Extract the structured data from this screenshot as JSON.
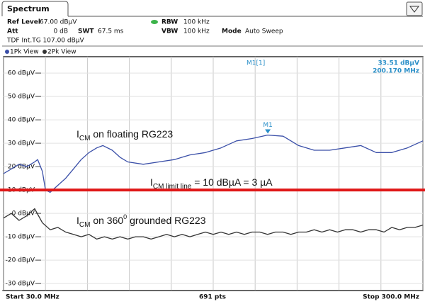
{
  "header": {
    "tab": "Spectrum",
    "ref_level_label": "Ref Level",
    "ref_level": "67.00 dBµV",
    "att_label": "Att",
    "att": "0 dB",
    "swt_label": "SWT",
    "swt": "67.5 ms",
    "rbw_label": "RBW",
    "rbw": "100 kHz",
    "vbw_label": "VBW",
    "vbw": "100 kHz",
    "mode_label": "Mode",
    "mode": "Auto Sweep",
    "tdf": "TDF Int.TG 107.00 dBµV"
  },
  "footer": {
    "start": "Start 30.0 MHz",
    "points": "691 pts",
    "stop": "Stop 300.0 MHz"
  },
  "chart_data": {
    "type": "line",
    "xlim": [
      30,
      300
    ],
    "xticks": [
      30,
      57,
      84,
      111,
      138,
      165,
      192,
      219,
      246,
      273,
      300
    ],
    "ylim": [
      -33,
      67
    ],
    "yticks": [
      {
        "value": 60,
        "label": "60 dBµV"
      },
      {
        "value": 50,
        "label": "50 dBµV"
      },
      {
        "value": 40,
        "label": "40 dBµV"
      },
      {
        "value": 30,
        "label": "30 dBµV"
      },
      {
        "value": 20,
        "label": "20 dBµV"
      },
      {
        "value": 10,
        "label": "10 dBµV"
      },
      {
        "value": 0,
        "label": "0 dBµV"
      },
      {
        "value": -10,
        "label": "-10 dBµV"
      },
      {
        "value": -20,
        "label": "-20 dBµV"
      },
      {
        "value": -30,
        "label": "-30 dBµV"
      }
    ],
    "grid": true,
    "series": [
      {
        "name": "1Pk View",
        "color": "#3a4fa8",
        "x": [
          30,
          35,
          40,
          45,
          50,
          52,
          55,
          57,
          60,
          65,
          70,
          75,
          80,
          85,
          90,
          94,
          100,
          105,
          110,
          120,
          130,
          140,
          150,
          160,
          170,
          180,
          190,
          200,
          210,
          220,
          230,
          240,
          250,
          260,
          270,
          280,
          290,
          300
        ],
        "values": [
          17,
          19,
          21,
          20,
          22,
          23,
          18,
          10,
          9,
          12,
          15,
          19,
          23,
          26,
          28,
          29,
          27,
          24,
          22,
          21,
          22,
          23,
          25,
          26,
          28,
          31,
          32,
          33.5,
          33,
          29,
          27,
          27,
          28,
          29,
          26,
          26,
          28,
          31
        ]
      },
      {
        "name": "2Pk View",
        "color": "#333333",
        "x": [
          30,
          35,
          40,
          45,
          50,
          55,
          60,
          65,
          70,
          75,
          80,
          85,
          90,
          95,
          100,
          105,
          110,
          115,
          120,
          125,
          130,
          135,
          140,
          145,
          150,
          155,
          160,
          165,
          170,
          175,
          180,
          185,
          190,
          195,
          200,
          205,
          210,
          215,
          220,
          225,
          230,
          235,
          240,
          245,
          250,
          255,
          260,
          265,
          270,
          275,
          280,
          285,
          290,
          295,
          300
        ],
        "values": [
          -2,
          0,
          -3,
          -1,
          2,
          -4,
          -7,
          -6,
          -8,
          -9,
          -10,
          -9,
          -11,
          -10,
          -11,
          -10,
          -11,
          -10,
          -10,
          -11,
          -10,
          -9,
          -10,
          -9,
          -10,
          -9,
          -8,
          -9,
          -8,
          -9,
          -8,
          -9,
          -8,
          -8,
          -9,
          -8,
          -8,
          -9,
          -8,
          -8,
          -7,
          -8,
          -7,
          -8,
          -7,
          -7,
          -8,
          -7,
          -7,
          -8,
          -6,
          -7,
          -6,
          -6,
          -5
        ]
      }
    ],
    "limit_line": {
      "value": 10,
      "color": "#e01818"
    },
    "marker": {
      "name": "M1",
      "label": "M1[1]",
      "x": 200.17,
      "x_label": "200.170 MHz",
      "y": 33.51,
      "y_label": "33.51 dBµV"
    },
    "annotations": [
      {
        "main": "I",
        "sub": "CM",
        "rest": " on floating RG223"
      },
      {
        "main": "I",
        "sub": "CM limit line",
        "rest": " = 10 dBµA = 3 µA"
      },
      {
        "main": "I",
        "sub": "CM",
        "mid": " on 360",
        "sup": "0",
        "rest": " grounded RG223"
      }
    ]
  }
}
